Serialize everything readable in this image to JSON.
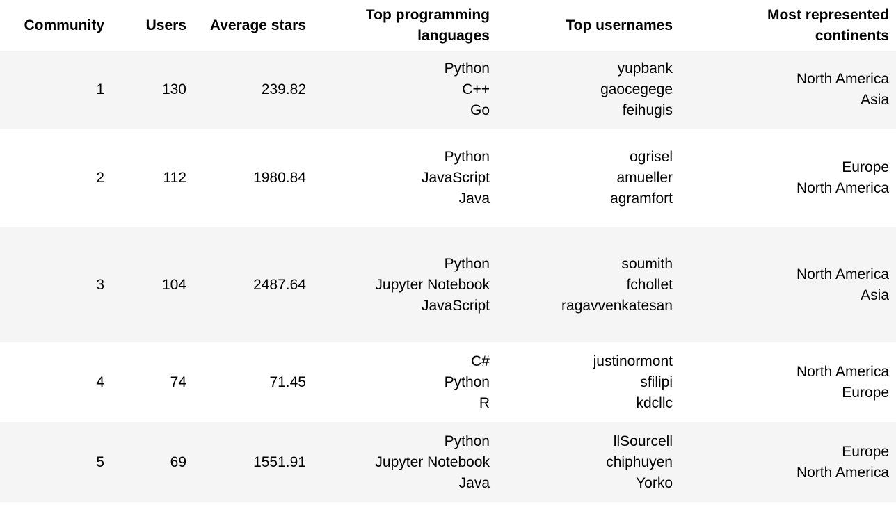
{
  "table": {
    "headers": {
      "community": "Community",
      "users": "Users",
      "average_stars": "Average stars",
      "top_languages": [
        "Top programming",
        "languages"
      ],
      "top_usernames": "Top usernames",
      "continents": [
        "Most represented",
        "continents"
      ]
    },
    "rows": [
      {
        "community": "1",
        "users": "130",
        "average_stars": "239.82",
        "languages": [
          "Python",
          "C++",
          "Go"
        ],
        "usernames": [
          "yupbank",
          "gaocegege",
          "feihugis"
        ],
        "continents": [
          "North America",
          "Asia"
        ]
      },
      {
        "community": "2",
        "users": "112",
        "average_stars": "1980.84",
        "languages": [
          "Python",
          "JavaScript",
          "Java"
        ],
        "usernames": [
          "ogrisel",
          "amueller",
          "agramfort"
        ],
        "continents": [
          "Europe",
          "North America"
        ]
      },
      {
        "community": "3",
        "users": "104",
        "average_stars": "2487.64",
        "languages": [
          "Python",
          "Jupyter Notebook",
          "JavaScript"
        ],
        "usernames": [
          "soumith",
          "fchollet",
          "ragavvenkatesan"
        ],
        "continents": [
          "North America",
          "Asia"
        ]
      },
      {
        "community": "4",
        "users": "74",
        "average_stars": "71.45",
        "languages": [
          "C#",
          "Python",
          "R"
        ],
        "usernames": [
          "justinormont",
          "sfilipi",
          "kdcllc"
        ],
        "continents": [
          "North America",
          "Europe"
        ]
      },
      {
        "community": "5",
        "users": "69",
        "average_stars": "1551.91",
        "languages": [
          "Python",
          "Jupyter Notebook",
          "Java"
        ],
        "usernames": [
          "llSourcell",
          "chiphuyen",
          "Yorko"
        ],
        "continents": [
          "Europe",
          "North America"
        ]
      }
    ]
  }
}
